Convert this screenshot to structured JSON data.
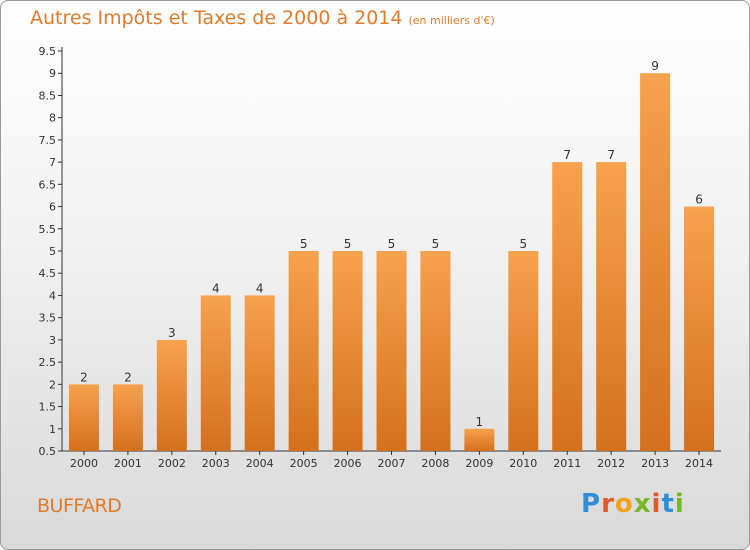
{
  "header": {
    "title": "Autres Impôts et Taxes de 2000 à 2014",
    "unit": "(en milliers d'€)"
  },
  "footer": {
    "place": "BUFFARD",
    "logo": "Proxiti"
  },
  "colors": {
    "bar_light": "#f7a24e",
    "bar_dark": "#d4701d",
    "title": "#e07b2a",
    "axis": "#333333"
  },
  "chart_data": {
    "type": "bar",
    "categories": [
      "2000",
      "2001",
      "2002",
      "2003",
      "2004",
      "2005",
      "2006",
      "2007",
      "2008",
      "2009",
      "2010",
      "2011",
      "2012",
      "2013",
      "2014"
    ],
    "values": [
      2,
      2,
      3,
      4,
      4,
      5,
      5,
      5,
      5,
      1,
      5,
      7,
      7,
      9,
      6
    ],
    "ylim": [
      0.5,
      9.5
    ],
    "yticks": [
      "0.5",
      "1",
      "1.5",
      "2",
      "2.5",
      "3",
      "3.5",
      "4",
      "4.5",
      "5",
      "5.5",
      "6",
      "6.5",
      "7",
      "7.5",
      "8",
      "8.5",
      "9",
      "9.5"
    ],
    "grid": false,
    "data_labels": true
  }
}
